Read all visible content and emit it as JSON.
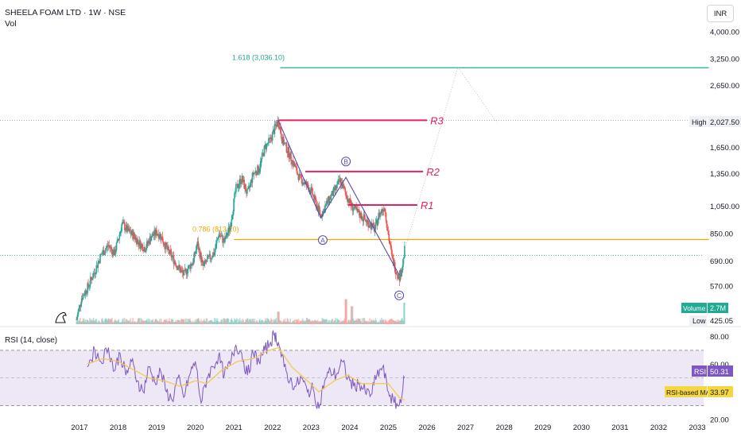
{
  "header": {
    "symbol_line": "SHEELA FOAM LTD · 1W · NSE",
    "vol_label": "Vol",
    "currency": "INR"
  },
  "rsi_title": "RSI (14, close)",
  "badges": {
    "high_label": "High",
    "high_value": "2,027.50",
    "volume_label": "Volume",
    "volume_value": "2.7M",
    "low_label": "Low",
    "low_value": "425.05",
    "rsi_label": "RSI",
    "rsi_value": "50.31",
    "rsi_ma_label": "RSI-based MA",
    "rsi_ma_value": "33.97"
  },
  "colors": {
    "up": "#26a69a",
    "down": "#ef5350",
    "fib_green": "#22ab94",
    "fib_orange": "#f7a600",
    "resistance": "#e0245e",
    "wave": "#5b4aa8",
    "rsi_line": "#7e57c2",
    "rsi_ma": "#f5c842",
    "rsi_band": "#ede7f6"
  },
  "chart_data": [
    {
      "type": "candlestick",
      "title": "SHEELA FOAM LTD · 1W · NSE",
      "xlabel": "",
      "ylabel": "",
      "scale": "log",
      "ylim": [
        425,
        4000
      ],
      "xlim": [
        2017,
        2033.3
      ],
      "x_ticks": [
        "2017",
        "2018",
        "2019",
        "2020",
        "2021",
        "2022",
        "2023",
        "2024",
        "2025",
        "2026",
        "2027",
        "2028",
        "2029",
        "2030",
        "2031",
        "2032",
        "2033"
      ],
      "y_ticks": [
        "4,000.00",
        "3,250.00",
        "2,650.00",
        "1,650.00",
        "1,350.00",
        "1,050.00",
        "850.00",
        "690.00",
        "570.00"
      ],
      "price_path": [
        [
          2016.92,
          440
        ],
        [
          2017.05,
          520
        ],
        [
          2017.2,
          560
        ],
        [
          2017.4,
          640
        ],
        [
          2017.55,
          720
        ],
        [
          2017.75,
          780
        ],
        [
          2017.9,
          730
        ],
        [
          2018.0,
          810
        ],
        [
          2018.1,
          920
        ],
        [
          2018.25,
          870
        ],
        [
          2018.4,
          840
        ],
        [
          2018.55,
          790
        ],
        [
          2018.7,
          760
        ],
        [
          2018.85,
          830
        ],
        [
          2019.0,
          860
        ],
        [
          2019.1,
          840
        ],
        [
          2019.25,
          760
        ],
        [
          2019.4,
          710
        ],
        [
          2019.55,
          660
        ],
        [
          2019.7,
          620
        ],
        [
          2019.8,
          650
        ],
        [
          2019.95,
          690
        ],
        [
          2020.05,
          790
        ],
        [
          2020.2,
          660
        ],
        [
          2020.3,
          690
        ],
        [
          2020.5,
          740
        ],
        [
          2020.6,
          850
        ],
        [
          2020.75,
          800
        ],
        [
          2020.9,
          900
        ],
        [
          2021.05,
          1200
        ],
        [
          2021.2,
          1300
        ],
        [
          2021.35,
          1150
        ],
        [
          2021.5,
          1350
        ],
        [
          2021.65,
          1400
        ],
        [
          2021.8,
          1650
        ],
        [
          2021.95,
          1750
        ],
        [
          2022.05,
          1900
        ],
        [
          2022.15,
          2027
        ],
        [
          2022.25,
          1750
        ],
        [
          2022.4,
          1600
        ],
        [
          2022.55,
          1450
        ],
        [
          2022.7,
          1300
        ],
        [
          2022.85,
          1250
        ],
        [
          2023.0,
          1180
        ],
        [
          2023.15,
          1050
        ],
        [
          2023.25,
          980
        ],
        [
          2023.45,
          1100
        ],
        [
          2023.6,
          1180
        ],
        [
          2023.75,
          1280
        ],
        [
          2023.9,
          1150
        ],
        [
          2024.05,
          1050
        ],
        [
          2024.2,
          1000
        ],
        [
          2024.35,
          960
        ],
        [
          2024.5,
          920
        ],
        [
          2024.65,
          880
        ],
        [
          2024.75,
          980
        ],
        [
          2024.9,
          1050
        ],
        [
          2025.0,
          840
        ],
        [
          2025.1,
          700
        ],
        [
          2025.2,
          640
        ],
        [
          2025.28,
          610
        ],
        [
          2025.35,
          650
        ],
        [
          2025.42,
          750
        ]
      ],
      "volume_spikes": [
        [
          2022.15,
          0.35
        ],
        [
          2023.9,
          0.7
        ],
        [
          2024.05,
          0.5
        ],
        [
          2025.42,
          0.6
        ]
      ],
      "horizontal_levels": [
        {
          "label": "1.618 (3,036.10)",
          "price": 3036.1,
          "start_x": 2022.2,
          "end_x": 2033.3
        },
        {
          "label": "0.786 (813.20)",
          "price": 813.2,
          "start_x": 2021.0,
          "end_x": 2033.3
        }
      ],
      "resistance_lines": [
        {
          "label": "R3",
          "price": 2030,
          "start_x": 2022.15,
          "end_x": 2026.0
        },
        {
          "label": "R2",
          "price": 1370,
          "start_x": 2022.85,
          "end_x": 2025.9
        },
        {
          "label": "R1",
          "price": 1060,
          "start_x": 2023.95,
          "end_x": 2025.75
        }
      ],
      "wave_labels": [
        {
          "label": "A",
          "x": 2023.3,
          "price": 810
        },
        {
          "label": "B",
          "x": 2023.9,
          "price": 1480
        },
        {
          "label": "C",
          "x": 2025.28,
          "price": 530
        }
      ],
      "wave_path": [
        [
          2022.15,
          2027
        ],
        [
          2023.25,
          960
        ],
        [
          2023.9,
          1310
        ],
        [
          2025.28,
          620
        ]
      ],
      "projection_path": [
        [
          2025.42,
          750
        ],
        [
          2026.8,
          3050
        ],
        [
          2027.8,
          2000
        ]
      ],
      "dotted_levels": [
        2027.5,
        720
      ]
    },
    {
      "type": "line",
      "title": "RSI (14, close)",
      "ylim": [
        16,
        86
      ],
      "y_ticks": [
        "80.00",
        "60.00",
        "40.00",
        "20.00"
      ],
      "bands": [
        70,
        30
      ],
      "midline": 50,
      "series": [
        {
          "name": "RSI",
          "points": [
            [
              2017.2,
              58
            ],
            [
              2017.4,
              70
            ],
            [
              2017.55,
              62
            ],
            [
              2017.75,
              72
            ],
            [
              2017.9,
              55
            ],
            [
              2018.05,
              68
            ],
            [
              2018.2,
              52
            ],
            [
              2018.35,
              62
            ],
            [
              2018.5,
              48
            ],
            [
              2018.65,
              40
            ],
            [
              2018.8,
              58
            ],
            [
              2018.95,
              47
            ],
            [
              2019.1,
              55
            ],
            [
              2019.25,
              40
            ],
            [
              2019.4,
              34
            ],
            [
              2019.55,
              50
            ],
            [
              2019.7,
              36
            ],
            [
              2019.85,
              52
            ],
            [
              2020.0,
              62
            ],
            [
              2020.15,
              32
            ],
            [
              2020.3,
              50
            ],
            [
              2020.45,
              58
            ],
            [
              2020.6,
              66
            ],
            [
              2020.75,
              52
            ],
            [
              2020.9,
              60
            ],
            [
              2021.05,
              74
            ],
            [
              2021.2,
              68
            ],
            [
              2021.35,
              52
            ],
            [
              2021.5,
              68
            ],
            [
              2021.65,
              62
            ],
            [
              2021.8,
              70
            ],
            [
              2021.95,
              76
            ],
            [
              2022.05,
              82
            ],
            [
              2022.15,
              76
            ],
            [
              2022.3,
              58
            ],
            [
              2022.45,
              48
            ],
            [
              2022.6,
              44
            ],
            [
              2022.75,
              50
            ],
            [
              2022.9,
              40
            ],
            [
              2023.05,
              42
            ],
            [
              2023.2,
              28
            ],
            [
              2023.35,
              48
            ],
            [
              2023.5,
              55
            ],
            [
              2023.65,
              52
            ],
            [
              2023.8,
              62
            ],
            [
              2023.95,
              50
            ],
            [
              2024.1,
              44
            ],
            [
              2024.25,
              46
            ],
            [
              2024.4,
              40
            ],
            [
              2024.55,
              38
            ],
            [
              2024.7,
              52
            ],
            [
              2024.85,
              58
            ],
            [
              2025.0,
              40
            ],
            [
              2025.15,
              32
            ],
            [
              2025.28,
              30
            ],
            [
              2025.42,
              50
            ]
          ]
        },
        {
          "name": "RSI-based MA",
          "points": [
            [
              2017.2,
              60
            ],
            [
              2017.6,
              64
            ],
            [
              2018.0,
              62
            ],
            [
              2018.4,
              56
            ],
            [
              2018.8,
              50
            ],
            [
              2019.2,
              48
            ],
            [
              2019.6,
              44
            ],
            [
              2020.0,
              48
            ],
            [
              2020.3,
              46
            ],
            [
              2020.7,
              56
            ],
            [
              2021.1,
              62
            ],
            [
              2021.5,
              64
            ],
            [
              2021.9,
              70
            ],
            [
              2022.15,
              72
            ],
            [
              2022.5,
              58
            ],
            [
              2022.9,
              48
            ],
            [
              2023.2,
              40
            ],
            [
              2023.6,
              48
            ],
            [
              2023.95,
              52
            ],
            [
              2024.3,
              46
            ],
            [
              2024.7,
              46
            ],
            [
              2025.0,
              46
            ],
            [
              2025.28,
              36
            ],
            [
              2025.42,
              34
            ]
          ]
        }
      ]
    }
  ]
}
